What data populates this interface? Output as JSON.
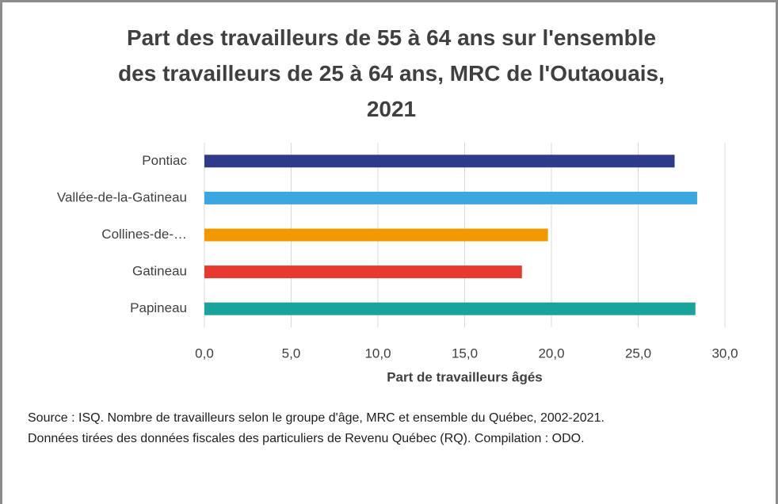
{
  "chart_data": {
    "type": "bar",
    "orientation": "horizontal",
    "title": "Part des travailleurs de 55 à 64 ans sur l'ensemble des travailleurs de 25 à 64 ans, MRC de l'Outaouais, 2021",
    "categories": [
      "Pontiac",
      "Vallée-de-la-Gatineau",
      "Collines-de-…",
      "Gatineau",
      "Papineau"
    ],
    "values": [
      27.1,
      28.4,
      19.8,
      18.3,
      28.3
    ],
    "colors": [
      "#2e3a8c",
      "#3aa8e0",
      "#f39800",
      "#e8392e",
      "#1aa39a"
    ],
    "xlim": [
      0,
      30
    ],
    "xticks": [
      {
        "value": 0,
        "label": "0,0"
      },
      {
        "value": 5,
        "label": "5,0"
      },
      {
        "value": 10,
        "label": "10,0"
      },
      {
        "value": 15,
        "label": "15,0"
      },
      {
        "value": 20,
        "label": "20,0"
      },
      {
        "value": 25,
        "label": "25,0"
      },
      {
        "value": 30,
        "label": "30,0"
      }
    ],
    "xlabel": "Part de travailleurs âgés",
    "grid": true,
    "note": "Source : ISQ. Nombre de travailleurs selon le groupe d'âge, MRC et ensemble du Québec, 2002-2021. Données tirées des données fiscales des particuliers de Revenu Québec (RQ). Compilation : ODO."
  }
}
